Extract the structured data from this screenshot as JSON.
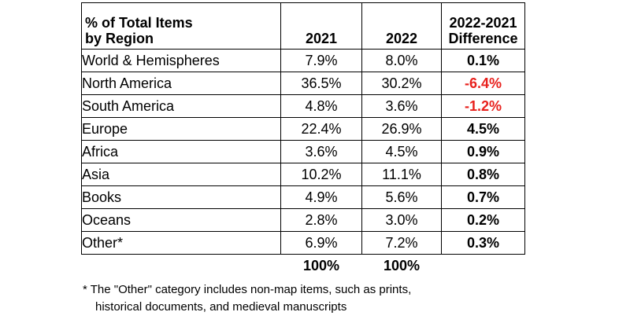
{
  "table": {
    "header": {
      "label_line1": "% of Total Items",
      "label_line2": "by Region",
      "col_2021": "2021",
      "col_2022": "2022",
      "diff_line1": "2022-2021",
      "diff_line2": "Difference"
    },
    "rows": [
      {
        "region": "World & Hemispheres",
        "y2021": "7.9%",
        "y2022": "8.0%",
        "diff": "0.1%",
        "negative": false
      },
      {
        "region": "North America",
        "y2021": "36.5%",
        "y2022": "30.2%",
        "diff": "-6.4%",
        "negative": true
      },
      {
        "region": "South America",
        "y2021": "4.8%",
        "y2022": "3.6%",
        "diff": "-1.2%",
        "negative": true
      },
      {
        "region": "Europe",
        "y2021": "22.4%",
        "y2022": "26.9%",
        "diff": "4.5%",
        "negative": false
      },
      {
        "region": "Africa",
        "y2021": "3.6%",
        "y2022": "4.5%",
        "diff": "0.9%",
        "negative": false
      },
      {
        "region": "Asia",
        "y2021": "10.2%",
        "y2022": "11.1%",
        "diff": "0.8%",
        "negative": false
      },
      {
        "region": "Books",
        "y2021": "4.9%",
        "y2022": "5.6%",
        "diff": "0.7%",
        "negative": false
      },
      {
        "region": "Oceans",
        "y2021": "2.8%",
        "y2022": "3.0%",
        "diff": "0.2%",
        "negative": false
      },
      {
        "region": "Other*",
        "y2021": "6.9%",
        "y2022": "7.2%",
        "diff": "0.3%",
        "negative": false
      }
    ],
    "totals": {
      "y2021": "100%",
      "y2022": "100%"
    }
  },
  "colors": {
    "negative": "#e8211d"
  },
  "footnote": {
    "line1": "* The \"Other\" category includes non-map items, such as prints,",
    "line2": "historical documents, and medieval manuscripts"
  }
}
